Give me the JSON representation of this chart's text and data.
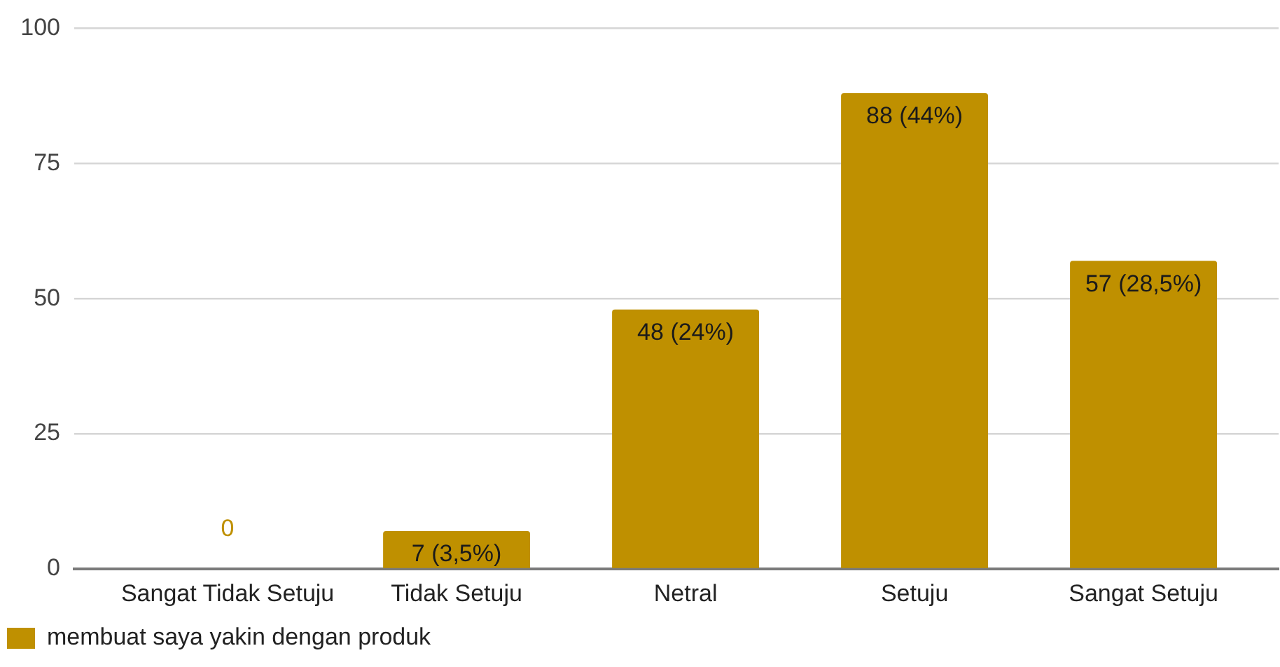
{
  "chart_data": {
    "type": "bar",
    "categories": [
      "Sangat Tidak Setuju",
      "Tidak Setuju",
      "Netral",
      "Setuju",
      "Sangat Setuju"
    ],
    "series": [
      {
        "name": "membuat saya yakin dengan produk",
        "color": "#bf9000",
        "values": [
          0,
          7,
          48,
          88,
          57
        ],
        "value_labels": [
          "0",
          "7 (3,5%)",
          "48 (24%)",
          "88 (44%)",
          "57 (28,5%)"
        ]
      }
    ],
    "ylim": [
      0,
      100
    ],
    "yticks": [
      0,
      25,
      50,
      75,
      100
    ],
    "grid": "y",
    "legend": "bottom left"
  }
}
